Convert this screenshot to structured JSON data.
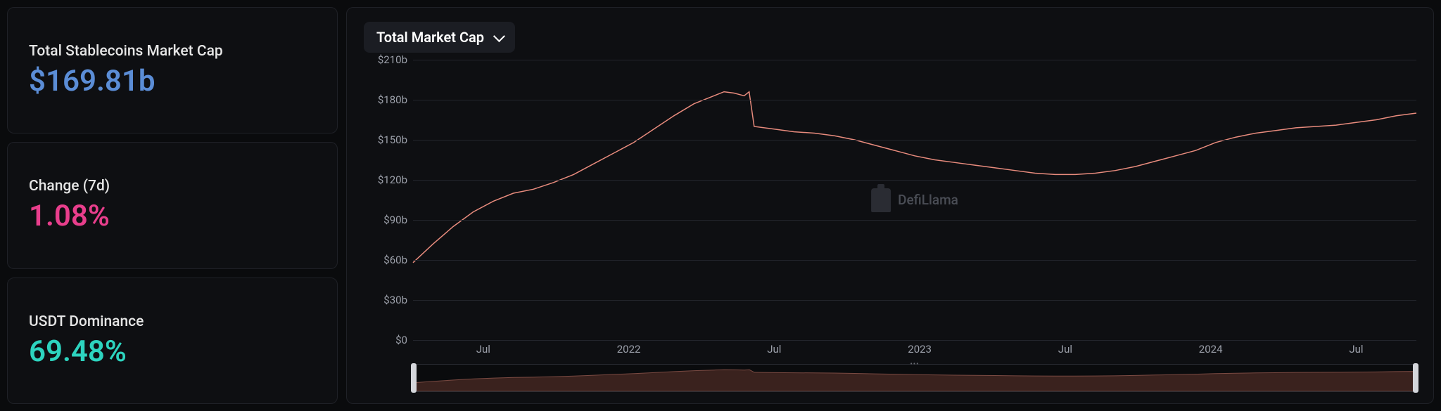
{
  "sidebar": {
    "cards": [
      {
        "label": "Total Stablecoins Market Cap",
        "value": "$169.81b",
        "color": "#5b8dd6"
      },
      {
        "label": "Change (7d)",
        "value": "1.08%",
        "color": "#e83e8c"
      },
      {
        "label": "USDT Dominance",
        "value": "69.48%",
        "color": "#2dd4bf"
      }
    ]
  },
  "chart": {
    "dropdown_label": "Total Market Cap",
    "watermark": "DefiLlama",
    "type": "line",
    "line_color": "#e88b7d",
    "line_width": 1.5,
    "grid_color": "#23252c",
    "background": "#0e0f12",
    "y": {
      "min": 0,
      "max": 210,
      "ticks": [
        0,
        30,
        60,
        90,
        120,
        150,
        180,
        210
      ],
      "tick_labels": [
        "$0",
        "$30b",
        "$60b",
        "$90b",
        "$120b",
        "$150b",
        "$180b",
        "$210b"
      ],
      "label_color": "#9ca0aa",
      "label_fontsize": 15
    },
    "x": {
      "min": 0,
      "max": 100,
      "ticks": [
        7,
        21.5,
        36,
        50.5,
        65,
        79.5,
        94
      ],
      "tick_labels": [
        "Jul",
        "2022",
        "Jul",
        "2023",
        "Jul",
        "2024",
        "Jul"
      ],
      "label_color": "#9ca0aa",
      "label_fontsize": 15
    },
    "series": [
      {
        "x": 0,
        "y": 58
      },
      {
        "x": 2,
        "y": 72
      },
      {
        "x": 4,
        "y": 85
      },
      {
        "x": 6,
        "y": 96
      },
      {
        "x": 8,
        "y": 104
      },
      {
        "x": 10,
        "y": 110
      },
      {
        "x": 12,
        "y": 113
      },
      {
        "x": 14,
        "y": 118
      },
      {
        "x": 16,
        "y": 124
      },
      {
        "x": 18,
        "y": 132
      },
      {
        "x": 20,
        "y": 140
      },
      {
        "x": 22,
        "y": 148
      },
      {
        "x": 24,
        "y": 158
      },
      {
        "x": 26,
        "y": 168
      },
      {
        "x": 28,
        "y": 177
      },
      {
        "x": 30,
        "y": 183
      },
      {
        "x": 31,
        "y": 186
      },
      {
        "x": 32,
        "y": 185
      },
      {
        "x": 33,
        "y": 183
      },
      {
        "x": 33.5,
        "y": 186
      },
      {
        "x": 34,
        "y": 160
      },
      {
        "x": 36,
        "y": 158
      },
      {
        "x": 38,
        "y": 156
      },
      {
        "x": 40,
        "y": 155
      },
      {
        "x": 42,
        "y": 153
      },
      {
        "x": 44,
        "y": 150
      },
      {
        "x": 46,
        "y": 146
      },
      {
        "x": 48,
        "y": 142
      },
      {
        "x": 50,
        "y": 138
      },
      {
        "x": 52,
        "y": 135
      },
      {
        "x": 54,
        "y": 133
      },
      {
        "x": 56,
        "y": 131
      },
      {
        "x": 58,
        "y": 129
      },
      {
        "x": 60,
        "y": 127
      },
      {
        "x": 62,
        "y": 125
      },
      {
        "x": 64,
        "y": 124
      },
      {
        "x": 66,
        "y": 124
      },
      {
        "x": 68,
        "y": 125
      },
      {
        "x": 70,
        "y": 127
      },
      {
        "x": 72,
        "y": 130
      },
      {
        "x": 74,
        "y": 134
      },
      {
        "x": 76,
        "y": 138
      },
      {
        "x": 78,
        "y": 142
      },
      {
        "x": 80,
        "y": 148
      },
      {
        "x": 82,
        "y": 152
      },
      {
        "x": 84,
        "y": 155
      },
      {
        "x": 86,
        "y": 157
      },
      {
        "x": 88,
        "y": 159
      },
      {
        "x": 90,
        "y": 160
      },
      {
        "x": 92,
        "y": 161
      },
      {
        "x": 94,
        "y": 163
      },
      {
        "x": 96,
        "y": 165
      },
      {
        "x": 98,
        "y": 168
      },
      {
        "x": 100,
        "y": 170
      }
    ],
    "brush": {
      "area_fill": "#3a221e",
      "area_stroke": "#7a4a42",
      "handle_color": "#d4d6db"
    }
  }
}
